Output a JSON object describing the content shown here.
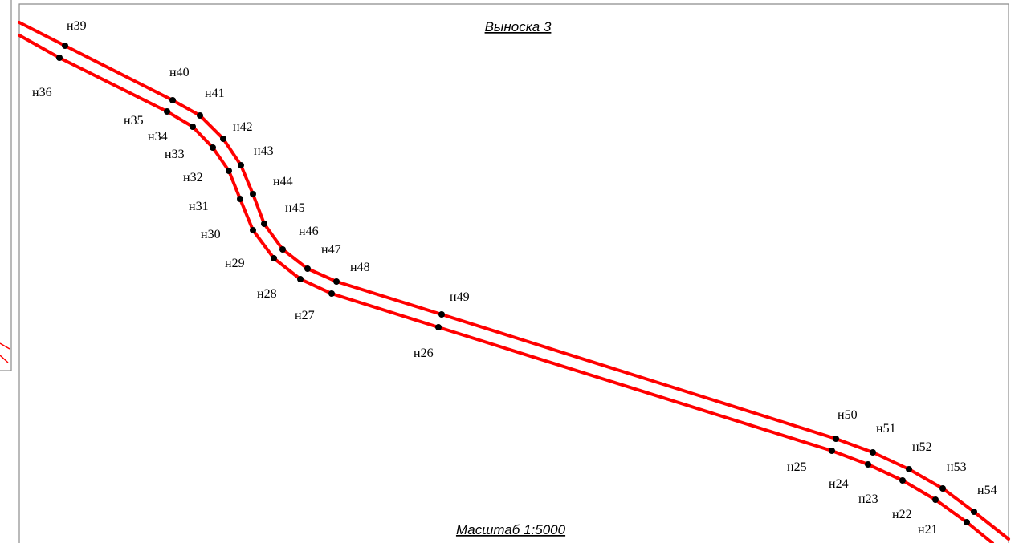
{
  "title": "Выноска 3",
  "scale": "Масштаб 1:5000",
  "line_color": "#ff0000",
  "points_upper": [
    "н39",
    "н40",
    "н41",
    "н42",
    "н43",
    "н44",
    "н45",
    "н46",
    "н47",
    "н48",
    "н49",
    "н50",
    "н51",
    "н52",
    "н53",
    "н54"
  ],
  "points_lower": [
    "н36",
    "н35",
    "н34",
    "н33",
    "н32",
    "н31",
    "н30",
    "н29",
    "н28",
    "н27",
    "н26",
    "н25",
    "н24",
    "н23",
    "н22",
    "н21"
  ]
}
